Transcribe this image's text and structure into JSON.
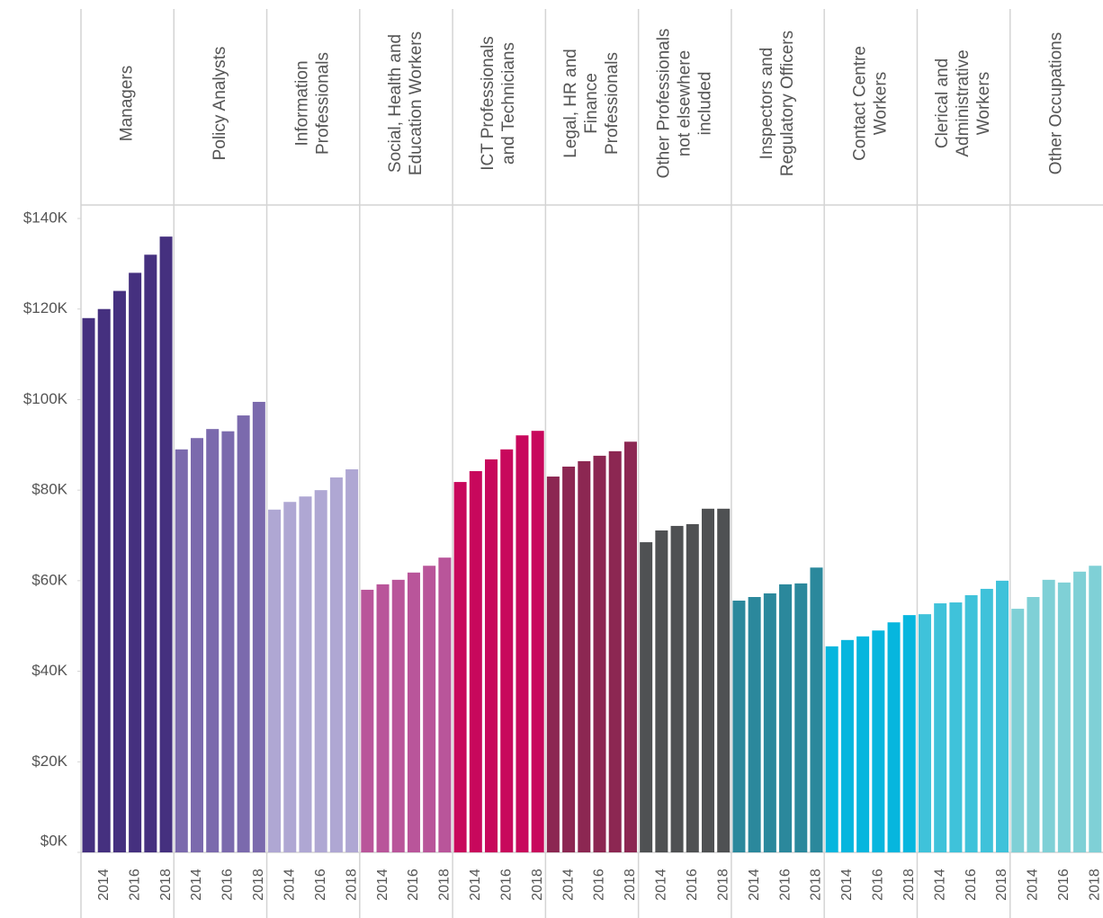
{
  "chart_data": {
    "type": "bar",
    "ylim": [
      0,
      140000
    ],
    "yticks": [
      {
        "value": 0,
        "label": "$0K"
      },
      {
        "value": 20000,
        "label": "$20K"
      },
      {
        "value": 40000,
        "label": "$40K"
      },
      {
        "value": 60000,
        "label": "$60K"
      },
      {
        "value": 80000,
        "label": "$80K"
      },
      {
        "value": 100000,
        "label": "$100K"
      },
      {
        "value": 120000,
        "label": "$120K"
      },
      {
        "value": 140000,
        "label": "$140K"
      }
    ],
    "panels": [
      {
        "title": [
          "Managers"
        ],
        "color": "#45307f",
        "categories": [
          null,
          "2014",
          null,
          "2016",
          null,
          "2018"
        ],
        "values": [
          118000,
          120000,
          124000,
          128000,
          132000,
          136000
        ]
      },
      {
        "title": [
          "Policy Analysts"
        ],
        "color": "#7b6aad",
        "categories": [
          null,
          "2014",
          null,
          "2016",
          null,
          "2018"
        ],
        "values": [
          89000,
          91500,
          93500,
          93000,
          96500,
          99500
        ]
      },
      {
        "title": [
          "Information",
          "Professionals"
        ],
        "color": "#afa7d3",
        "categories": [
          null,
          "2014",
          null,
          "2016",
          null,
          "2018"
        ],
        "values": [
          75700,
          77400,
          78600,
          80000,
          82800,
          84600
        ]
      },
      {
        "title": [
          "Social, Health and",
          "Education Workers"
        ],
        "color": "#b9559a",
        "categories": [
          null,
          "2014",
          null,
          "2016",
          null,
          "2018"
        ],
        "values": [
          58000,
          59200,
          60200,
          61800,
          63300,
          65100
        ]
      },
      {
        "title": [
          "ICT Professionals",
          "and Technicians"
        ],
        "color": "#c8085c",
        "categories": [
          null,
          "2014",
          null,
          "2016",
          null,
          "2018"
        ],
        "values": [
          81800,
          84200,
          86800,
          89000,
          92100,
          93100
        ]
      },
      {
        "title": [
          "Legal, HR and",
          "Finance",
          "Professionals"
        ],
        "color": "#8c2752",
        "categories": [
          null,
          "2014",
          null,
          "2016",
          null,
          "2018"
        ],
        "values": [
          83000,
          85200,
          86400,
          87600,
          88600,
          90700
        ]
      },
      {
        "title": [
          "Other Professionals",
          "not elsewhere",
          "included"
        ],
        "color": "#4f5153",
        "categories": [
          null,
          "2014",
          null,
          "2016",
          null,
          "2018"
        ],
        "values": [
          68500,
          71100,
          72100,
          72500,
          75900,
          75900
        ]
      },
      {
        "title": [
          "Inspectors and",
          "Regulatory Officers"
        ],
        "color": "#2b889c",
        "categories": [
          null,
          "2014",
          null,
          "2016",
          null,
          "2018"
        ],
        "values": [
          55600,
          56400,
          57200,
          59200,
          59400,
          62900
        ]
      },
      {
        "title": [
          "Contact Centre",
          "Workers"
        ],
        "color": "#06b6de",
        "categories": [
          null,
          "2014",
          null,
          "2016",
          null,
          "2018"
        ],
        "values": [
          45500,
          46900,
          47700,
          49000,
          50800,
          52400
        ]
      },
      {
        "title": [
          "Clerical and",
          "Administrative",
          "Workers"
        ],
        "color": "#3fc2da",
        "categories": [
          null,
          "2014",
          null,
          "2016",
          null,
          "2018"
        ],
        "values": [
          52600,
          55000,
          55200,
          56800,
          58200,
          60000
        ]
      },
      {
        "title": [
          "Other Occupations"
        ],
        "color": "#7fd0d6",
        "categories": [
          null,
          "2014",
          null,
          "2016",
          null,
          "2018"
        ],
        "values": [
          53800,
          56400,
          60200,
          59600,
          62000,
          63300
        ]
      }
    ]
  }
}
